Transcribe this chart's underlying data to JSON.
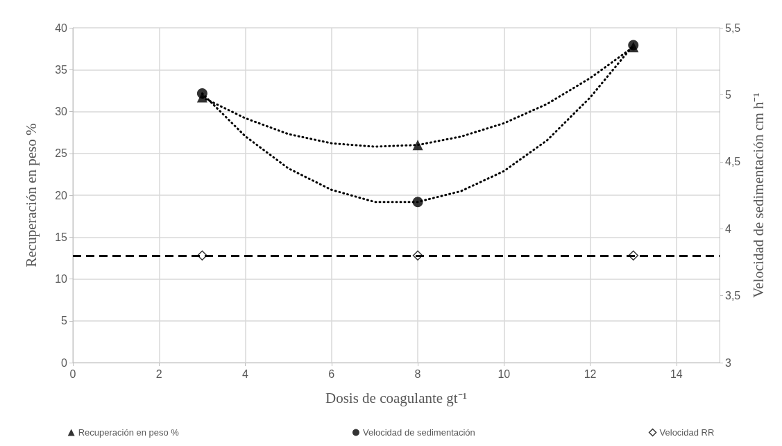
{
  "chart_data": {
    "type": "scatter",
    "xlabel": "Dosis de coagulante gt⁻¹",
    "ylabel": "Recuperación en peso %",
    "y2label": "Velocidad de sedimentación cm h⁻¹",
    "xlim": [
      0,
      15
    ],
    "xticks": [
      0,
      2,
      4,
      6,
      8,
      10,
      12,
      14
    ],
    "ylim": [
      0,
      40
    ],
    "yticks": [
      0,
      5,
      10,
      15,
      20,
      25,
      30,
      35,
      40
    ],
    "y2lim": [
      3,
      5.5
    ],
    "y2ticks": [
      {
        "value": 3,
        "label": "3"
      },
      {
        "value": 3.5,
        "label": "3,5"
      },
      {
        "value": 4,
        "label": "4"
      },
      {
        "value": 4.5,
        "label": "4,5"
      },
      {
        "value": 5,
        "label": "5"
      },
      {
        "value": 5.5,
        "label": "5,5"
      }
    ],
    "grid": true,
    "legend": "bottom",
    "series": [
      {
        "type": "line",
        "color": "#000000",
        "x": [
          3,
          4,
          5,
          6,
          7,
          8,
          9,
          10,
          11,
          12,
          13
        ],
        "values": [
          31.7,
          29.2,
          27.3,
          26.2,
          25.8,
          26,
          27,
          28.6,
          30.9,
          34,
          37.7
        ],
        "marker": "none",
        "line_style": "dotted"
      },
      {
        "type": "line",
        "color": "#000000",
        "axis": "y2",
        "x": [
          3,
          4,
          5,
          6,
          7,
          8,
          9,
          10,
          11,
          12,
          13
        ],
        "values": [
          5.01,
          4.69,
          4.45,
          4.29,
          4.2,
          4.2,
          4.28,
          4.43,
          4.66,
          4.98,
          5.37
        ],
        "marker": "none",
        "line_style": "dotted"
      },
      {
        "name": "Recuperación en peso %",
        "color": "#000000",
        "x": [
          3,
          8,
          13
        ],
        "values": [
          31.7,
          26,
          37.7
        ],
        "marker": "triangle"
      },
      {
        "name": "Velocidad de sedimentación",
        "color": "#000000",
        "axis": "y2",
        "x": [
          3,
          8,
          13
        ],
        "values": [
          5.01,
          4.2,
          5.37
        ],
        "marker": "circle"
      },
      {
        "name": "Velocidad RR",
        "color": "#000000",
        "axis": "y2",
        "x": [
          3,
          8,
          13
        ],
        "values": [
          3.8,
          3.8,
          3.8
        ],
        "marker": "diamond"
      }
    ],
    "ref_lines": [
      {
        "axis": "y2",
        "value": 3.8,
        "color": "#000000",
        "line_style": "dashed"
      }
    ]
  }
}
